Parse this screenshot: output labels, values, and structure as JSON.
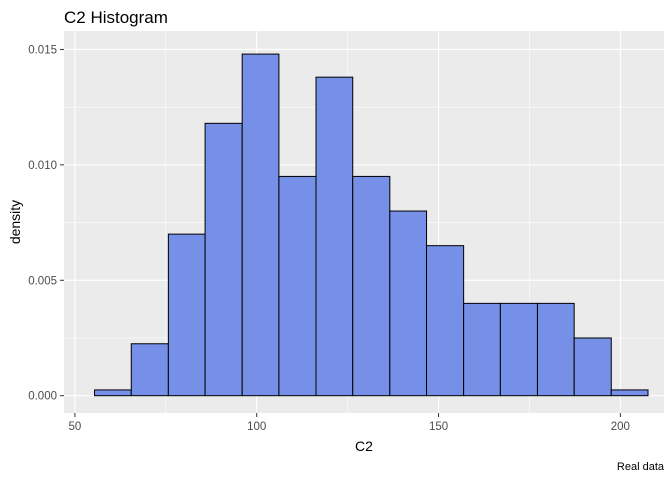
{
  "chart_data": {
    "type": "bar",
    "title": "C2 Histogram",
    "xlabel": "C2",
    "ylabel": "density",
    "caption": "Real data",
    "xlim": [
      47,
      212
    ],
    "ylim": [
      -0.00075,
      0.0158
    ],
    "x_ticks": [
      50,
      100,
      150,
      200
    ],
    "x_tick_labels": [
      "50",
      "100",
      "150",
      "200"
    ],
    "y_ticks": [
      0.0,
      0.005,
      0.01,
      0.015
    ],
    "y_tick_labels": [
      "0.000",
      "0.005",
      "0.010",
      "0.015"
    ],
    "grid": true,
    "bar_color": "#7590e6",
    "bar_edge_color": "#000000",
    "panel_color": "#ebebeb",
    "bins": [
      {
        "x0": 55.4,
        "x1": 65.5,
        "density": 0.00025
      },
      {
        "x0": 65.5,
        "x1": 75.7,
        "density": 0.00225
      },
      {
        "x0": 75.7,
        "x1": 85.8,
        "density": 0.007
      },
      {
        "x0": 85.8,
        "x1": 96.0,
        "density": 0.0118
      },
      {
        "x0": 96.0,
        "x1": 106.1,
        "density": 0.0148
      },
      {
        "x0": 106.1,
        "x1": 116.3,
        "density": 0.0095
      },
      {
        "x0": 116.3,
        "x1": 126.4,
        "density": 0.0138
      },
      {
        "x0": 126.4,
        "x1": 136.6,
        "density": 0.0095
      },
      {
        "x0": 136.6,
        "x1": 146.7,
        "density": 0.008
      },
      {
        "x0": 146.7,
        "x1": 156.9,
        "density": 0.0065
      },
      {
        "x0": 156.9,
        "x1": 167.0,
        "density": 0.004
      },
      {
        "x0": 167.0,
        "x1": 177.2,
        "density": 0.004
      },
      {
        "x0": 177.2,
        "x1": 187.3,
        "density": 0.004
      },
      {
        "x0": 187.3,
        "x1": 197.5,
        "density": 0.0025
      },
      {
        "x0": 197.5,
        "x1": 207.6,
        "density": 0.00025
      }
    ]
  }
}
